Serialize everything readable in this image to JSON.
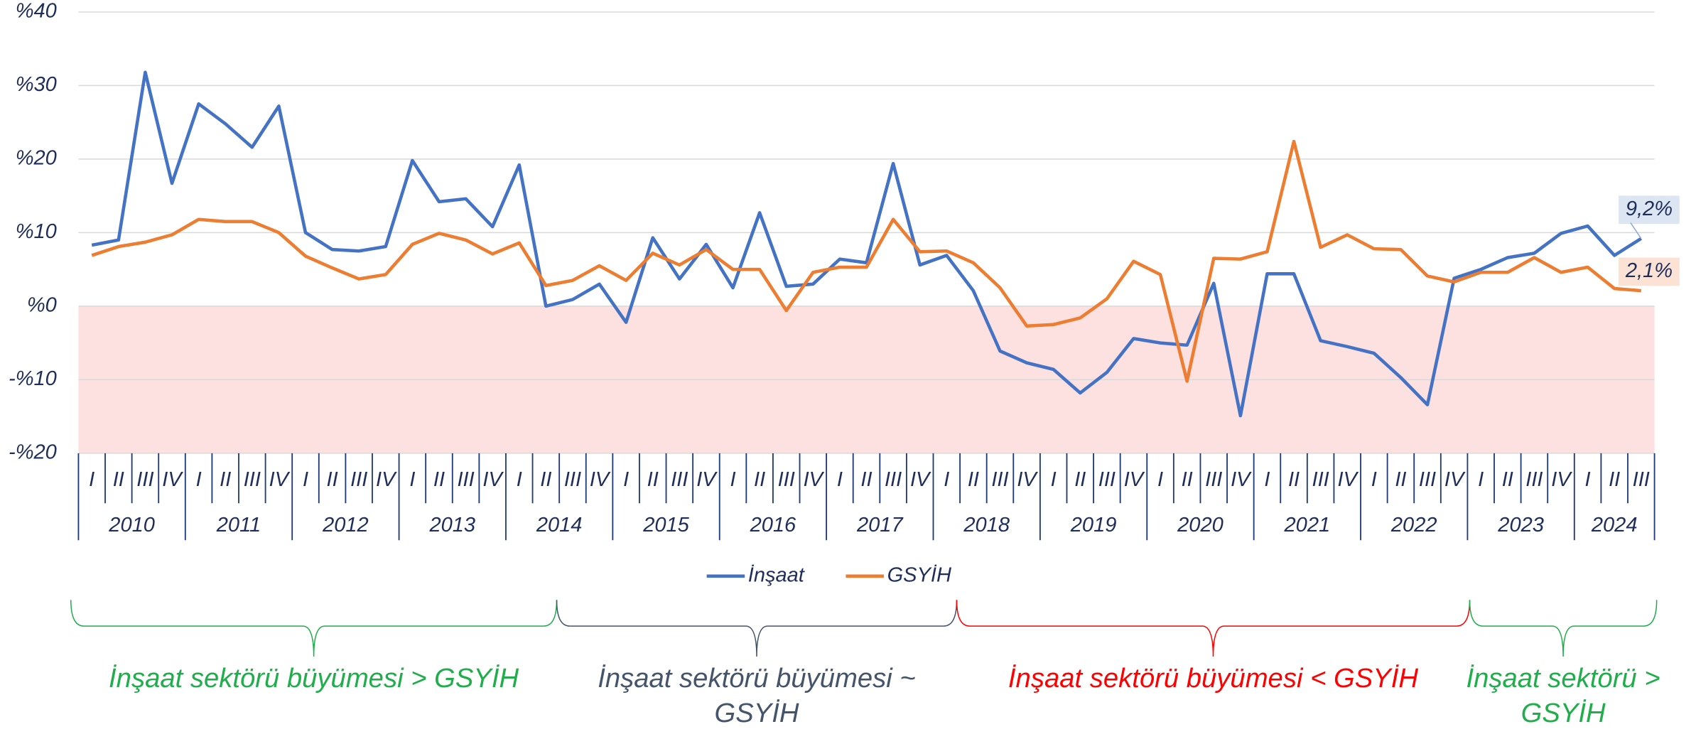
{
  "chart_data": {
    "type": "line",
    "categories": [
      "I",
      "II",
      "III",
      "IV",
      "I",
      "II",
      "III",
      "IV",
      "I",
      "II",
      "III",
      "IV",
      "I",
      "II",
      "III",
      "IV",
      "I",
      "II",
      "III",
      "IV",
      "I",
      "II",
      "III",
      "IV",
      "I",
      "II",
      "III",
      "IV",
      "I",
      "II",
      "III",
      "IV",
      "I",
      "II",
      "III",
      "IV",
      "I",
      "II",
      "III",
      "IV",
      "I",
      "II",
      "III",
      "IV",
      "I",
      "II",
      "III",
      "IV",
      "I",
      "II",
      "III",
      "IV",
      "I",
      "II",
      "III",
      "IV",
      "I",
      "II",
      "III"
    ],
    "years": [
      "2010",
      "2011",
      "2012",
      "2013",
      "2014",
      "2015",
      "2016",
      "2017",
      "2018",
      "2019",
      "2020",
      "2021",
      "2022",
      "2023",
      "2024"
    ],
    "series": [
      {
        "name": "İnşaat",
        "color": "#4472c4",
        "end_label": "9,2%",
        "end_label_bg": "#dce6f2",
        "values": [
          8.3,
          9.0,
          31.8,
          16.7,
          27.5,
          24.8,
          21.6,
          27.2,
          10.0,
          7.7,
          7.5,
          8.1,
          19.8,
          14.2,
          14.6,
          10.8,
          19.2,
          0,
          0.9,
          3.0,
          -2.2,
          9.3,
          3.7,
          8.4,
          2.5,
          12.7,
          2.7,
          3.0,
          6.4,
          5.9,
          19.4,
          5.6,
          6.9,
          2.1,
          -6.1,
          -7.7,
          -8.6,
          -11.8,
          -9.0,
          -4.4,
          -5.0,
          -5.3,
          3.1,
          -14.9,
          4.4,
          4.4,
          -4.7,
          -5.5,
          -6.4,
          -9.7,
          -13.4,
          3.8,
          5.0,
          6.6,
          7.2,
          9.9,
          10.9,
          6.9,
          9.2
        ]
      },
      {
        "name": "GSYİH",
        "color": "#ed7d31",
        "end_label": "2,1%",
        "end_label_bg": "#fbe2d5",
        "values": [
          6.9,
          8.1,
          8.7,
          9.7,
          11.8,
          11.5,
          11.5,
          10.0,
          6.8,
          5.2,
          3.7,
          4.3,
          8.4,
          9.9,
          9.0,
          7.1,
          8.6,
          2.8,
          3.5,
          5.5,
          3.5,
          7.2,
          5.6,
          7.7,
          5.0,
          5.0,
          -0.6,
          4.6,
          5.3,
          5.3,
          11.8,
          7.4,
          7.5,
          5.9,
          2.5,
          -2.7,
          -2.5,
          -1.6,
          1.0,
          6.1,
          4.3,
          -10.2,
          6.5,
          6.4,
          7.4,
          22.4,
          8.0,
          9.7,
          7.8,
          7.7,
          4.1,
          3.3,
          4.6,
          4.6,
          6.6,
          4.6,
          5.3,
          2.4,
          2.1
        ]
      }
    ],
    "ylim": [
      -20,
      40
    ],
    "yticks": [
      {
        "value": -20,
        "label": "-%20"
      },
      {
        "value": -10,
        "label": "-%10"
      },
      {
        "value": 0,
        "label": "%0"
      },
      {
        "value": 10,
        "label": "%10"
      },
      {
        "value": 20,
        "label": "%20"
      },
      {
        "value": 30,
        "label": "%30"
      },
      {
        "value": 40,
        "label": "%40"
      }
    ],
    "grid": true,
    "negative_shade": "#fde0e0",
    "legend": "bottom",
    "annotations": [
      {
        "text": "İnşaat sektörü büyümesi > GSYİH",
        "color": "#1fae4b"
      },
      {
        "text": "İnşaat sektörü büyümesi ~ GSYİH",
        "color": "#44546a"
      },
      {
        "text": "İnşaat sektörü büyümesi < GSYİH",
        "color": "#ff0000"
      },
      {
        "text": "İnşaat sektörü > GSYİH",
        "color": "#1fae4b"
      }
    ]
  }
}
